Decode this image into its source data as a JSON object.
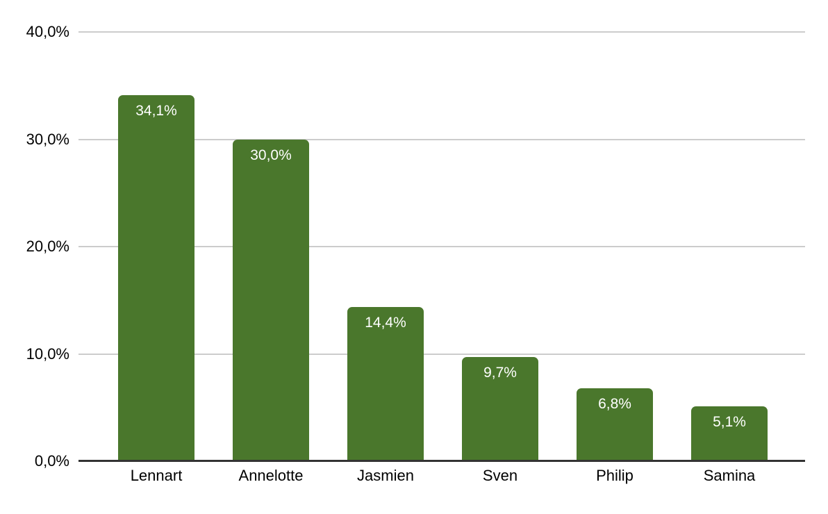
{
  "chart_data": {
    "type": "bar",
    "title": "",
    "xlabel": "",
    "ylabel": "",
    "categories": [
      "Lennart",
      "Annelotte",
      "Jasmien",
      "Sven",
      "Philip",
      "Samina"
    ],
    "values": [
      34.1,
      30.0,
      14.4,
      9.7,
      6.8,
      5.1
    ],
    "value_labels": [
      "34,1%",
      "30,0%",
      "14,4%",
      "9,7%",
      "6,8%",
      "5,1%"
    ],
    "ylim": [
      0,
      40
    ],
    "yticks": [
      0,
      10,
      20,
      30,
      40
    ],
    "ytick_labels": [
      "0,0%",
      "10,0%",
      "20,0%",
      "30,0%",
      "40,0%"
    ],
    "grid": true,
    "legend": false,
    "colors": {
      "bar": "#4A772C",
      "bar_value_label": "#ffffff",
      "axis_text": "#000000",
      "gridline": "#cccccc",
      "baseline": "#333333",
      "background": "#ffffff"
    }
  }
}
